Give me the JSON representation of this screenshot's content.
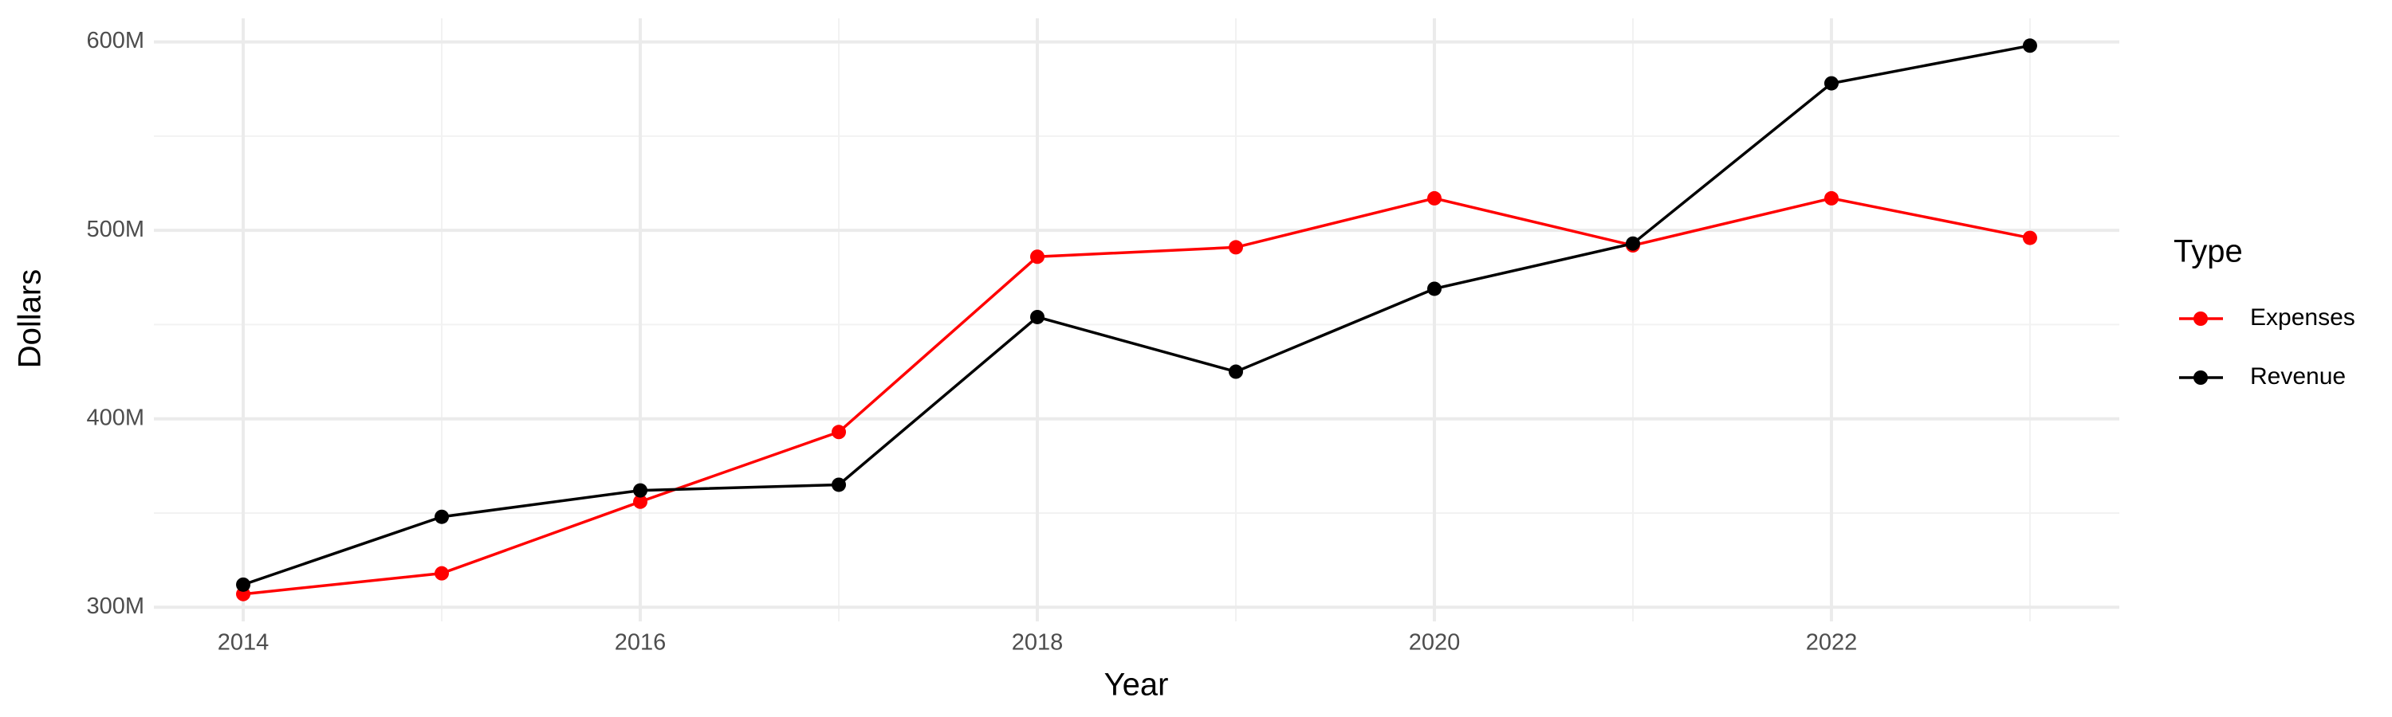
{
  "chart_data": {
    "type": "line",
    "x": [
      2014,
      2015,
      2016,
      2017,
      2018,
      2019,
      2020,
      2021,
      2022,
      2023
    ],
    "series": [
      {
        "name": "Expenses",
        "color": "#ff0000",
        "values": [
          307000000,
          318000000,
          356000000,
          393000000,
          486000000,
          491000000,
          517000000,
          492000000,
          517000000,
          496000000
        ]
      },
      {
        "name": "Revenue",
        "color": "#000000",
        "values": [
          312000000,
          348000000,
          362000000,
          365000000,
          454000000,
          425000000,
          469000000,
          493000000,
          578000000,
          598000000
        ]
      }
    ],
    "xlabel": "Year",
    "ylabel": "Dollars",
    "legend_title": "Type",
    "legend": "right",
    "xlim": [
      2013.55,
      2023.45
    ],
    "xticks": [
      2014,
      2016,
      2018,
      2020,
      2022
    ],
    "xminor": [
      2015,
      2017,
      2019,
      2021,
      2023
    ],
    "ylim": [
      292500000,
      612500000
    ],
    "yticks": [
      {
        "value": 300000000,
        "label": "300M"
      },
      {
        "value": 400000000,
        "label": "400M"
      },
      {
        "value": 500000000,
        "label": "500M"
      },
      {
        "value": 600000000,
        "label": "600M"
      }
    ],
    "yminor": [
      350000000,
      450000000,
      550000000
    ],
    "grid": true
  }
}
